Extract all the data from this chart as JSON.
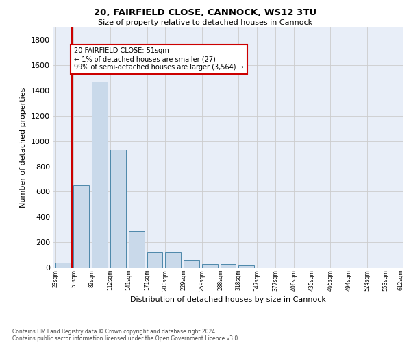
{
  "title_line1": "20, FAIRFIELD CLOSE, CANNOCK, WS12 3TU",
  "title_line2": "Size of property relative to detached houses in Cannock",
  "xlabel": "Distribution of detached houses by size in Cannock",
  "ylabel": "Number of detached properties",
  "bar_values": [
    40,
    650,
    1470,
    935,
    290,
    120,
    120,
    60,
    25,
    25,
    15,
    0,
    0,
    0,
    0,
    0,
    0,
    0,
    0
  ],
  "tick_labels": [
    "23sqm",
    "53sqm",
    "82sqm",
    "112sqm",
    "141sqm",
    "171sqm",
    "200sqm",
    "229sqm",
    "259sqm",
    "288sqm",
    "318sqm",
    "347sqm",
    "377sqm",
    "406sqm",
    "435sqm",
    "465sqm",
    "494sqm",
    "524sqm",
    "553sqm",
    "612sqm"
  ],
  "bar_fill_color": "#c9d9ea",
  "bar_edge_color": "#4d88aa",
  "highlight_color": "#cc0000",
  "ylim": [
    0,
    1900
  ],
  "yticks": [
    0,
    200,
    400,
    600,
    800,
    1000,
    1200,
    1400,
    1600,
    1800
  ],
  "grid_color": "#cccccc",
  "bg_color": "#e8eef8",
  "annotation_line1": "20 FAIRFIELD CLOSE: 51sqm",
  "annotation_line2": "← 1% of detached houses are smaller (27)",
  "annotation_line3": "99% of semi-detached houses are larger (3,564) →",
  "annotation_box_color": "#cc0000",
  "footnote1": "Contains HM Land Registry data © Crown copyright and database right 2024.",
  "footnote2": "Contains public sector information licensed under the Open Government Licence v3.0."
}
